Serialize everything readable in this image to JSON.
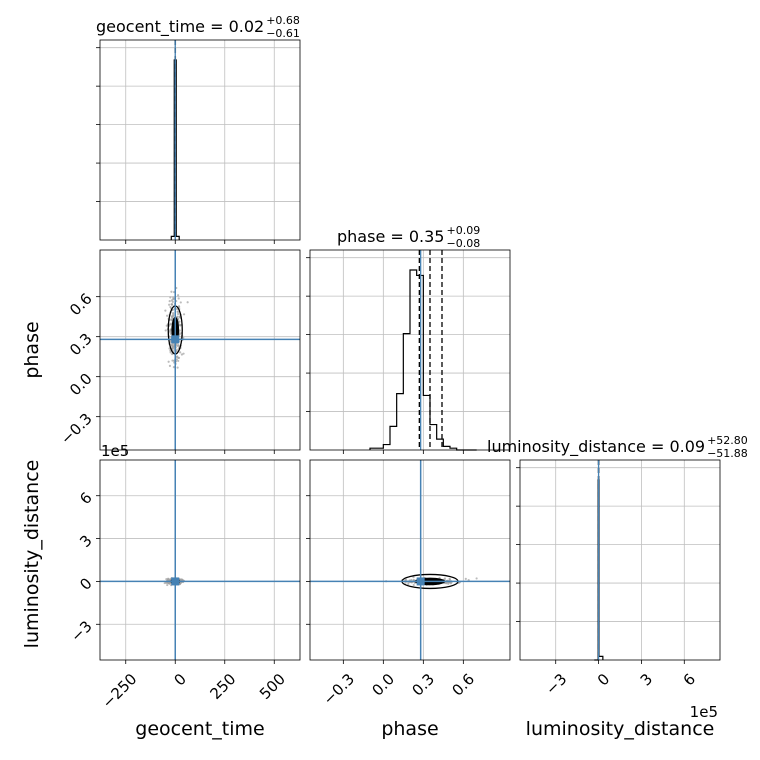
{
  "colors": {
    "truth": "#4682b4",
    "hist": "#000000",
    "grid": "#bfbfbf",
    "scatter": "#a0a0a0"
  },
  "chart_data": {
    "type": "corner",
    "parameters": [
      "geocent_time",
      "phase",
      "luminosity_distance"
    ],
    "truths": {
      "geocent_time": 0,
      "phase": 0.28,
      "luminosity_distance": 0
    },
    "ranges": {
      "geocent_time": [
        -380,
        630
      ],
      "phase": [
        -0.55,
        0.95
      ],
      "luminosity_distance": [
        -550000,
        850000
      ]
    },
    "ticks": {
      "geocent_time": {
        "values": [
          -250,
          0,
          250,
          500
        ],
        "labels": [
          "−250",
          "0",
          "250",
          "500"
        ]
      },
      "phase": {
        "values": [
          -0.3,
          0.0,
          0.3,
          0.6
        ],
        "labels": [
          "−0.3",
          "0.0",
          "0.3",
          "0.6"
        ]
      },
      "luminosity_distance": {
        "values": [
          -300000,
          0,
          300000,
          600000
        ],
        "labels": [
          "−3",
          "0",
          "3",
          "6"
        ]
      }
    },
    "offset_label": "1e5",
    "titles": [
      {
        "param": "geocent_time",
        "main": "geocent_time = 0.02",
        "plus": "+0.68",
        "minus": "−0.61"
      },
      {
        "param": "phase",
        "main": "phase = 0.35",
        "plus": "+0.09",
        "minus": "−0.08"
      },
      {
        "param": "luminosity_distance",
        "main": "luminosity_distance = 0.09",
        "plus": "+52.80",
        "minus": "−51.88"
      }
    ],
    "quantiles": {
      "geocent_time": [
        -0.59,
        0.02,
        0.7
      ],
      "phase": [
        0.27,
        0.35,
        0.44
      ],
      "luminosity_distance": [
        -51.79,
        0.09,
        52.89
      ]
    },
    "histograms": {
      "geocent_time": {
        "edges": [
          -20,
          -5,
          5,
          20
        ],
        "counts": [
          0.02,
          1.0,
          0.02
        ]
      },
      "phase": {
        "edges": [
          -0.1,
          0.0,
          0.05,
          0.1,
          0.15,
          0.2,
          0.25,
          0.3,
          0.35,
          0.4,
          0.45,
          0.5,
          0.55,
          0.6,
          0.65,
          0.7
        ],
        "counts": [
          0.01,
          0.03,
          0.13,
          0.31,
          0.64,
          0.99,
          0.96,
          0.3,
          0.14,
          0.06,
          0.02,
          0.01,
          0.0,
          0.0,
          0.0
        ]
      },
      "luminosity_distance": {
        "edges": [
          -30000,
          -3000,
          3000,
          30000
        ],
        "counts": [
          0.0,
          1.0,
          0.02
        ]
      }
    },
    "grid": true
  }
}
